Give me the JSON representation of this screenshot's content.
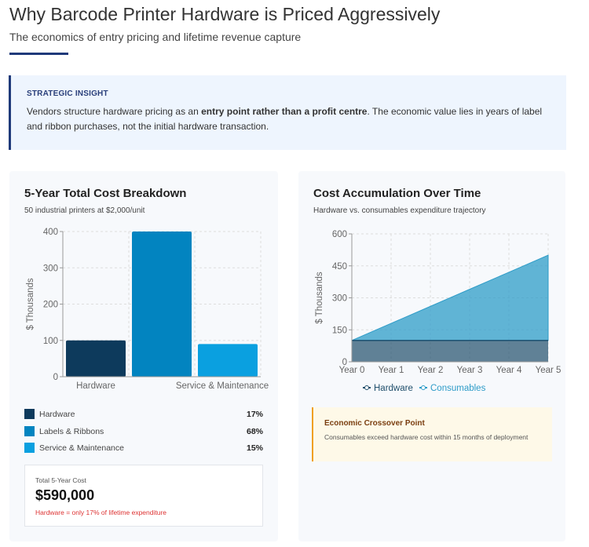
{
  "header": {
    "title": "Why Barcode Printer Hardware is Priced Aggressively",
    "subtitle": "The economics of entry pricing and lifetime revenue capture"
  },
  "insight": {
    "label": "STRATEGIC INSIGHT",
    "text_before": "Vendors structure hardware pricing as an ",
    "text_bold": "entry point rather than a profit centre",
    "text_after": ". The economic value lies in years of label and ribbon purchases, not the initial hardware transaction."
  },
  "breakdown": {
    "title": "5-Year Total Cost Breakdown",
    "subtitle": "50 industrial printers at $2,000/unit",
    "legend": [
      {
        "label": "Hardware",
        "pct": "17%",
        "color": "#0d3a5c"
      },
      {
        "label": "Labels & Ribbons",
        "pct": "68%",
        "color": "#0284c0"
      },
      {
        "label": "Service & Maintenance",
        "pct": "15%",
        "color": "#0aa0e0"
      }
    ],
    "total": {
      "label": "Total 5-Year Cost",
      "value": "$590,000",
      "note": "Hardware = only 17% of lifetime expenditure"
    }
  },
  "accumulation": {
    "title": "Cost Accumulation Over Time",
    "subtitle": "Hardware vs. consumables expenditure trajectory",
    "crossover": {
      "title": "Economic Crossover Point",
      "text": "Consumables exceed hardware cost within 15 months of deployment"
    }
  },
  "chart_data": [
    {
      "type": "bar",
      "categories": [
        "Hardware",
        "Labels & Ribbons",
        "Service & Maintenance"
      ],
      "visible_tick_labels": [
        "Hardware",
        "Service & Maintenance"
      ],
      "values": [
        100,
        400,
        90
      ],
      "colors": [
        "#0d3a5c",
        "#0284c0",
        "#0aa0e0"
      ],
      "ylabel": "$ Thousands",
      "ylim": [
        0,
        400
      ],
      "yticks": [
        0,
        100,
        200,
        300,
        400
      ],
      "grid": true
    },
    {
      "type": "area",
      "stacked": true,
      "categories": [
        "Year 0",
        "Year 1",
        "Year 2",
        "Year 3",
        "Year 4",
        "Year 5"
      ],
      "series": [
        {
          "name": "Hardware",
          "values": [
            100,
            100,
            100,
            100,
            100,
            100
          ],
          "color": "#1f4e6b"
        },
        {
          "name": "Consumables",
          "values": [
            0,
            80,
            160,
            240,
            320,
            400
          ],
          "color": "#2e9cc8"
        }
      ],
      "ylabel": "$ Thousands",
      "ylim": [
        0,
        600
      ],
      "yticks": [
        0,
        150,
        300,
        450,
        600
      ],
      "grid": true,
      "legend": "bottom"
    }
  ]
}
